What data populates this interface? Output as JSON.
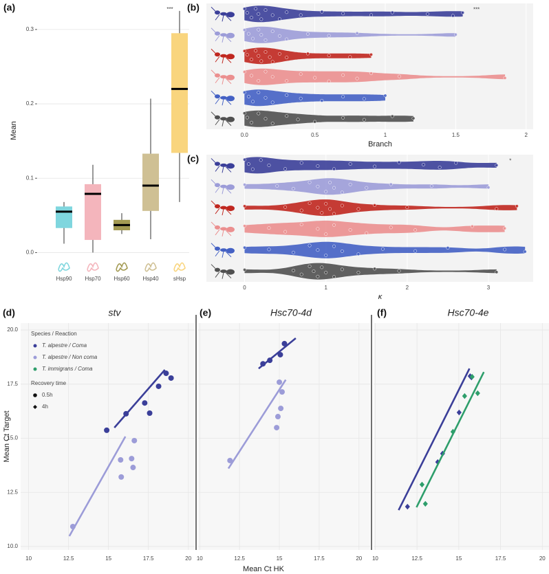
{
  "chart_data": [
    {
      "type": "box",
      "label": "(a)",
      "ylabel": "Mean",
      "categories": [
        "Hsp90",
        "Hsp70",
        "Hsp60",
        "Hsp40",
        "sHsp"
      ],
      "colors": [
        "#7fd6de",
        "#f4b5bc",
        "#a39a52",
        "#cfc094",
        "#f9d57e"
      ],
      "min": [
        0.012,
        0.0,
        0.025,
        0.018,
        0.068
      ],
      "q1": [
        0.033,
        0.017,
        0.03,
        0.056,
        0.134
      ],
      "median": [
        0.055,
        0.079,
        0.037,
        0.09,
        0.22
      ],
      "q3": [
        0.062,
        0.092,
        0.044,
        0.133,
        0.295
      ],
      "max": [
        0.068,
        0.118,
        0.053,
        0.207,
        0.325
      ],
      "ylim": [
        -0.007,
        0.335
      ],
      "yticks": [
        {
          "value": 0,
          "label": "0.0"
        },
        0.1,
        0.2,
        0.3
      ],
      "grid": true,
      "annotation": "***"
    },
    {
      "type": "violin",
      "label": "(b)",
      "xlabel": "Branch",
      "xlim": [
        -0.27,
        2.05
      ],
      "xticks": [
        {
          "value": 0,
          "label": "0.0"
        },
        0.5,
        1,
        1.5,
        2
      ],
      "grid": true,
      "annotation": "***",
      "series": [
        {
          "color": "#3b3f99",
          "values": [
            0.0,
            0.02,
            0.05,
            0.08,
            0.1,
            0.12,
            0.15,
            0.2,
            0.25,
            0.3,
            0.4,
            0.55,
            0.7,
            0.9,
            1.05,
            1.3,
            1.48,
            1.55
          ]
        },
        {
          "color": "#9c9cd8",
          "values": [
            0.0,
            0.03,
            0.06,
            0.1,
            0.12,
            0.15,
            0.2,
            0.25,
            0.3,
            0.45,
            0.6,
            0.8,
            1.5
          ]
        },
        {
          "color": "#c0271f",
          "values": [
            0.0,
            0.02,
            0.05,
            0.08,
            0.1,
            0.12,
            0.15,
            0.18,
            0.2,
            0.25,
            0.3,
            0.45,
            0.6,
            0.75,
            0.9
          ]
        },
        {
          "color": "#eb8f8f",
          "values": [
            0.0,
            0.05,
            0.1,
            0.15,
            0.2,
            0.3,
            0.4,
            0.5,
            0.6,
            0.7,
            0.8,
            0.9,
            1.1,
            1.85
          ]
        },
        {
          "color": "#4461c4",
          "values": [
            0.0,
            0.03,
            0.06,
            0.1,
            0.15,
            0.2,
            0.3,
            0.4,
            0.55,
            0.7,
            0.85,
            1.0
          ]
        },
        {
          "color": "#505050",
          "values": [
            0.0,
            0.02,
            0.05,
            0.1,
            0.15,
            0.2,
            0.3,
            0.38,
            0.5,
            0.7,
            0.85,
            1.05,
            1.2
          ]
        }
      ]
    },
    {
      "type": "violin",
      "label": "(c)",
      "xlabel": "κ",
      "xlim": [
        -0.47,
        3.55
      ],
      "xticks": [
        0,
        1,
        2,
        3
      ],
      "grid": true,
      "annotation": "*",
      "series": [
        {
          "color": "#3b3f99",
          "values": [
            0.0,
            0.05,
            0.1,
            0.2,
            0.3,
            0.5,
            0.7,
            0.9,
            1.1,
            1.3,
            1.6,
            1.9,
            2.2,
            2.4,
            2.6,
            3.1
          ]
        },
        {
          "color": "#9c9cd8",
          "values": [
            0.0,
            0.4,
            0.6,
            0.8,
            0.9,
            1.0,
            1.05,
            1.1,
            1.2,
            1.3,
            1.5,
            1.8,
            2.3,
            3.0
          ]
        },
        {
          "color": "#c0271f",
          "values": [
            0.0,
            0.5,
            0.7,
            0.8,
            0.9,
            0.95,
            1.0,
            1.05,
            1.1,
            1.2,
            1.4,
            1.6,
            2.0,
            3.1,
            3.35
          ]
        },
        {
          "color": "#eb8f8f",
          "values": [
            0.0,
            0.3,
            0.5,
            0.7,
            0.9,
            1.0,
            1.1,
            1.3,
            1.5,
            1.8,
            2.1,
            2.8,
            3.2
          ]
        },
        {
          "color": "#4461c4",
          "values": [
            0.0,
            0.3,
            0.6,
            0.8,
            0.9,
            1.0,
            1.1,
            1.2,
            1.4,
            1.7,
            2.1,
            2.5,
            3.2,
            3.45
          ]
        },
        {
          "color": "#505050",
          "values": [
            0.0,
            0.6,
            0.7,
            0.8,
            0.85,
            0.9,
            0.95,
            1.0,
            1.1,
            1.2,
            1.4,
            1.6,
            1.9,
            3.1
          ]
        }
      ]
    },
    {
      "type": "scatter",
      "label": "(d)",
      "title": "stv",
      "ylabel": "Mean Ct Target",
      "xlim": [
        9.5,
        20.4
      ],
      "ylim": [
        9.84,
        20.32
      ],
      "xticks": [
        10,
        12.5,
        15,
        17.5,
        20
      ],
      "yticks": [
        {
          "value": 10,
          "label": "10.0"
        },
        12.5,
        {
          "value": 15,
          "label": "15.0"
        },
        17.5,
        {
          "value": 20,
          "label": "20.0"
        }
      ],
      "legend": {
        "title": "Species / Reaction",
        "entries": [
          {
            "name": "T. alpestre / Coma",
            "color": "#3b3f99"
          },
          {
            "name": "T. alpestre / Non coma",
            "color": "#9c9cd8"
          },
          {
            "name": "T. immigrans / Coma",
            "color": "#2e9e6b"
          }
        ],
        "shape_title": "Recovery time",
        "shapes": [
          {
            "name": "0.5h",
            "shape": "circle"
          },
          {
            "name": "4h",
            "shape": "diamond"
          }
        ]
      },
      "series": [
        {
          "color": "#3b3f99",
          "shape": "circle",
          "x": [
            14.89,
            16.1,
            17.27,
            17.58,
            18.14,
            18.61,
            18.92
          ],
          "y": [
            15.37,
            16.13,
            16.63,
            16.16,
            17.4,
            18.0,
            17.78
          ],
          "fit_x": [
            15.37,
            18.53
          ],
          "fit_y": [
            15.49,
            18.16
          ]
        },
        {
          "color": "#9c9cd8",
          "shape": "circle",
          "x": [
            12.77,
            15.8,
            15.76,
            16.45,
            16.54,
            16.62
          ],
          "y": [
            10.92,
            13.21,
            14.0,
            14.06,
            13.65,
            14.89
          ],
          "fit_x": [
            12.55,
            16.06
          ],
          "fit_y": [
            10.48,
            15.08
          ]
        }
      ]
    },
    {
      "type": "scatter",
      "label": "(e)",
      "title": "Hsc70-4d",
      "xlabel": "Mean Ct HK",
      "xlim": [
        9.9,
        20.7
      ],
      "ylim": [
        9.84,
        20.32
      ],
      "xticks": [
        10,
        12.5,
        15,
        17.5,
        20
      ],
      "series": [
        {
          "color": "#3b3f99",
          "shape": "circle",
          "x": [
            13.97,
            15.06,
            15.32,
            14.4
          ],
          "y": [
            18.44,
            18.86,
            19.37,
            18.6
          ],
          "fit_x": [
            13.7,
            16.03
          ],
          "fit_y": [
            18.22,
            19.62
          ]
        },
        {
          "color": "#9c9cd8",
          "shape": "circle",
          "x": [
            11.9,
            14.83,
            14.91,
            15.09,
            15.17,
            15.0
          ],
          "y": [
            13.97,
            15.49,
            16.0,
            16.38,
            17.14,
            17.59
          ],
          "fit_x": [
            11.8,
            15.4
          ],
          "fit_y": [
            13.6,
            17.7
          ]
        }
      ]
    },
    {
      "type": "scatter",
      "label": "(f)",
      "title": "Hsc70-4e",
      "xlim": [
        9.9,
        20.4
      ],
      "ylim": [
        9.84,
        20.32
      ],
      "xticks": [
        10,
        12.5,
        15,
        17.5,
        20
      ],
      "series": [
        {
          "color": "#3b3f99",
          "shape": "diamond",
          "x": [
            11.93,
            13.74,
            14.03,
            15.02,
            15.68,
            15.76
          ],
          "y": [
            11.84,
            13.9,
            14.29,
            16.19,
            17.87,
            17.81
          ],
          "fit_x": [
            11.4,
            15.64
          ],
          "fit_y": [
            11.68,
            18.22
          ]
        },
        {
          "color": "#2e9e6b",
          "shape": "diamond",
          "x": [
            12.8,
            13.0,
            14.65,
            15.35,
            15.8,
            16.13
          ],
          "y": [
            12.86,
            11.97,
            15.3,
            16.95,
            17.84,
            17.08
          ],
          "fit_x": [
            12.47,
            16.5
          ],
          "fit_y": [
            11.81,
            18.06
          ]
        }
      ]
    }
  ]
}
